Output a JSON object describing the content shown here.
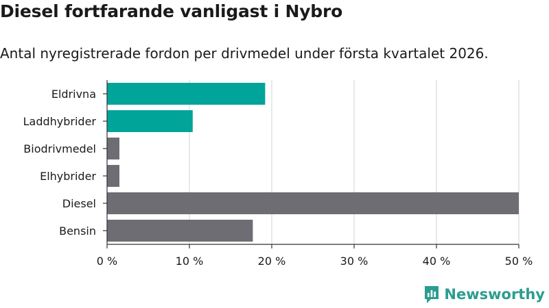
{
  "title": "Diesel fortfarande vanligast i Nybro",
  "subtitle": "Antal nyregistrerade fordon per drivmedel under första kvartalet 2026.",
  "brand": {
    "name": "Newsworthy",
    "icon": "newsworthy-logo-icon"
  },
  "colors": {
    "highlight": "#00a499",
    "default": "#6e6d73",
    "grid": "#d9d9d9",
    "text": "#1a1a1a"
  },
  "chart_data": {
    "type": "bar",
    "orientation": "horizontal",
    "categories": [
      "Eldrivna",
      "Laddhybrider",
      "Biodrivmedel",
      "Elhybrider",
      "Diesel",
      "Bensin"
    ],
    "values": [
      19.2,
      10.4,
      1.5,
      1.5,
      50.0,
      17.7
    ],
    "bar_colors": [
      "#00a499",
      "#00a499",
      "#6e6d73",
      "#6e6d73",
      "#6e6d73",
      "#6e6d73"
    ],
    "x_ticks": [
      0,
      10,
      20,
      30,
      40,
      50
    ],
    "x_tick_labels": [
      "0 %",
      "10 %",
      "20 %",
      "30 %",
      "40 %",
      "50 %"
    ],
    "xlim": [
      0,
      50
    ],
    "grid": true,
    "xlabel": "",
    "ylabel": ""
  }
}
